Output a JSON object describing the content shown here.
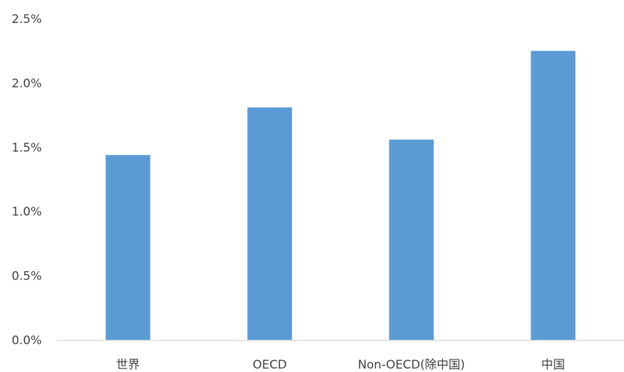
{
  "chart_data": {
    "type": "bar",
    "title": "",
    "xlabel": "",
    "ylabel": "",
    "categories": [
      "世界",
      "OECD",
      "Non-OECD(除中国)",
      "中国"
    ],
    "values": [
      1.44,
      1.81,
      1.56,
      2.25
    ],
    "unit": "%",
    "ylim": [
      0,
      2.5
    ],
    "y_ticks": [
      0.0,
      0.5,
      1.0,
      1.5,
      2.0,
      2.5
    ],
    "y_tick_labels": [
      "0.0%",
      "0.5%",
      "1.0%",
      "1.5%",
      "2.0%",
      "2.5%"
    ],
    "bar_color": "#5B9BD5",
    "axis_color": "#D9D9D9",
    "grid": false,
    "legend": "none"
  }
}
